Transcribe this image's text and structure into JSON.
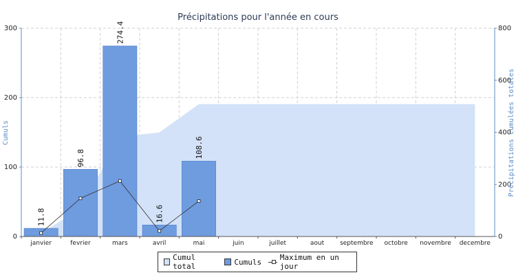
{
  "chart_data": {
    "type": "bar",
    "title": "Précipitations pour l'année en cours",
    "ylabel": "Cumuls",
    "y2label": "Précipitations cumulées totales",
    "ylim": [
      0,
      300
    ],
    "y2lim": [
      0,
      800
    ],
    "yticks": [
      "0",
      "100",
      "200",
      "300"
    ],
    "y2ticks": [
      "0",
      "200",
      "400",
      "600",
      "800"
    ],
    "categories": [
      "janvier",
      "fevrier",
      "mars",
      "avril",
      "mai",
      "juin",
      "juillet",
      "aout",
      "septembre",
      "octobre",
      "novembre",
      "decembre"
    ],
    "grid": true,
    "legend_position": "bottom",
    "colors": {
      "cumuls": "#6f9bdf",
      "cumul_total": "#d3e2f8",
      "axis": "#5b8cc4"
    },
    "series": [
      {
        "name": "Cumul total",
        "kind": "area",
        "axis": "right",
        "values": [
          11.8,
          108.6,
          383,
          399.6,
          508.2,
          508.2,
          508.2,
          508.2,
          508.2,
          508.2,
          508.2,
          508.2
        ]
      },
      {
        "name": "Cumuls",
        "kind": "bar",
        "axis": "left",
        "values": [
          11.8,
          96.8,
          274.4,
          16.6,
          108.6,
          null,
          null,
          null,
          null,
          null,
          null,
          null
        ],
        "labels": [
          "11.8",
          "96.8",
          "274.4",
          "16.6",
          "108.6"
        ]
      },
      {
        "name": "Maximum en un jour",
        "kind": "line",
        "axis": "left",
        "values": [
          5,
          55,
          80,
          8,
          51,
          null,
          null,
          null,
          null,
          null,
          null,
          null
        ]
      }
    ]
  },
  "legend": {
    "items": [
      "Cumul total",
      "Cumuls",
      "Maximum en un jour"
    ]
  }
}
